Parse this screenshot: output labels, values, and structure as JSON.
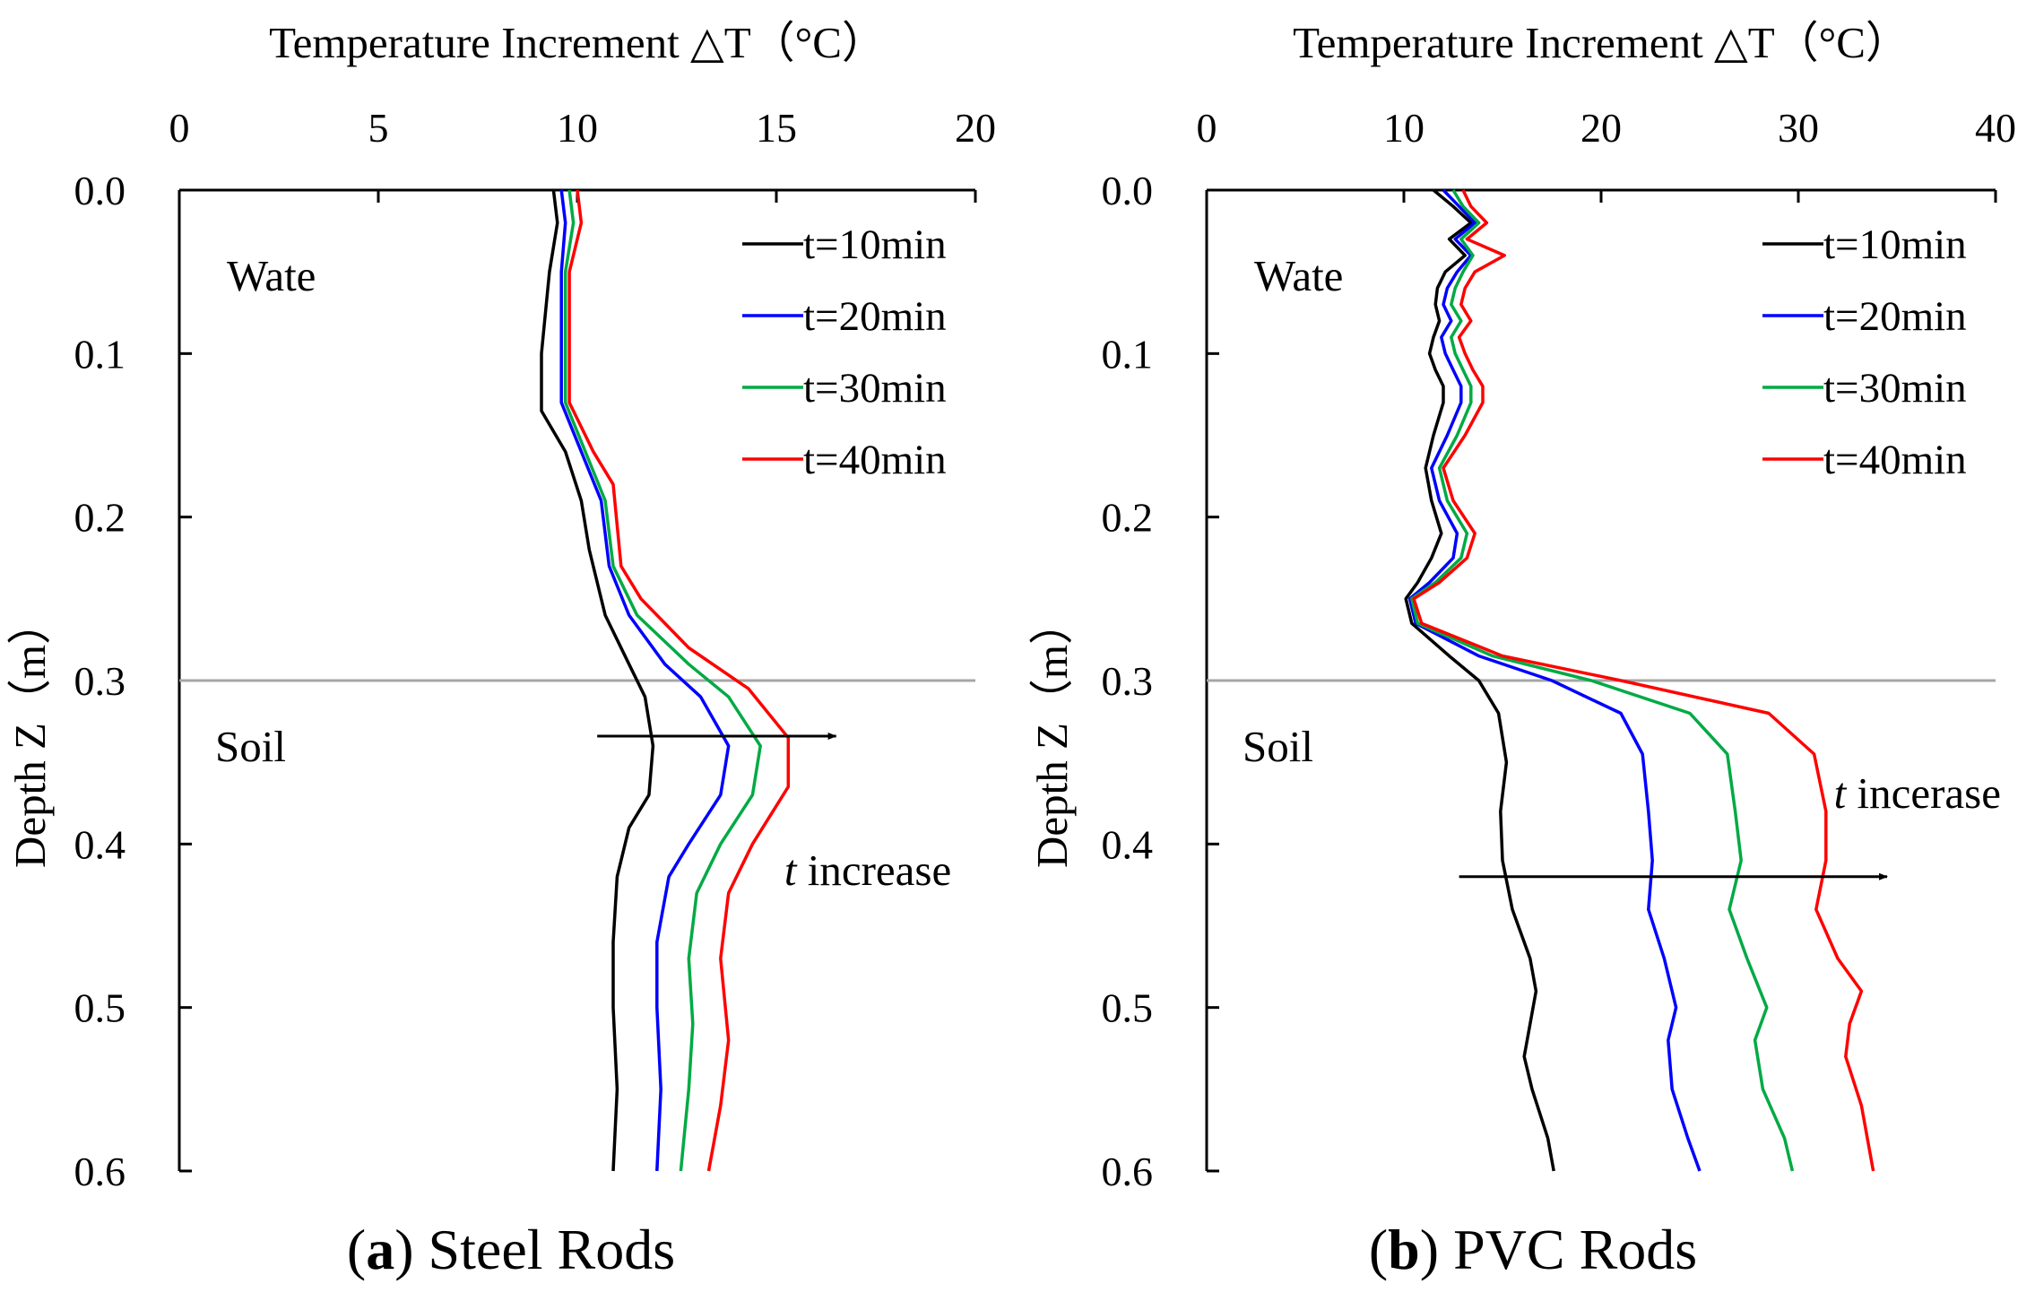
{
  "chart_data": [
    {
      "type": "line",
      "panel_letter": "a",
      "caption_text": "Steel Rods",
      "xlabel": "Temperature Increment △T（°C）",
      "ylabel": "Depth Z（m）",
      "xlim": [
        0,
        20
      ],
      "ylim": [
        0,
        0.6
      ],
      "y_inverted": true,
      "x_axis_position": "top",
      "xticks": [
        "0",
        "5",
        "10",
        "15",
        "20"
      ],
      "yticks": [
        "0.0",
        "0.1",
        "0.2",
        "0.3",
        "0.4",
        "0.5",
        "0.6"
      ],
      "interface_depth": 0.3,
      "region_labels": {
        "upper": "Wate",
        "lower": "Soil"
      },
      "annotation": {
        "italic": "t",
        "text": " increase",
        "arrow": {
          "from": [
            10.5,
            0.334
          ],
          "to": [
            16.5,
            0.334
          ]
        }
      },
      "legend_placement": "top-right",
      "series": [
        {
          "name": "t=10min",
          "color": "#000000",
          "points": [
            [
              9.4,
              0
            ],
            [
              9.5,
              0.02
            ],
            [
              9.3,
              0.05
            ],
            [
              9.1,
              0.1
            ],
            [
              9.1,
              0.135
            ],
            [
              9.7,
              0.16
            ],
            [
              10.1,
              0.19
            ],
            [
              10.3,
              0.22
            ],
            [
              10.7,
              0.26
            ],
            [
              11.3,
              0.29
            ],
            [
              11.7,
              0.31
            ],
            [
              11.9,
              0.34
            ],
            [
              11.8,
              0.37
            ],
            [
              11.3,
              0.39
            ],
            [
              11.0,
              0.42
            ],
            [
              10.9,
              0.46
            ],
            [
              10.9,
              0.5
            ],
            [
              11.0,
              0.55
            ],
            [
              10.9,
              0.6
            ]
          ]
        },
        {
          "name": "t=20min",
          "color": "#0000ff",
          "points": [
            [
              9.6,
              0
            ],
            [
              9.7,
              0.02
            ],
            [
              9.6,
              0.05
            ],
            [
              9.6,
              0.1
            ],
            [
              9.6,
              0.13
            ],
            [
              10.1,
              0.16
            ],
            [
              10.6,
              0.19
            ],
            [
              10.8,
              0.23
            ],
            [
              11.3,
              0.26
            ],
            [
              12.2,
              0.29
            ],
            [
              13.1,
              0.31
            ],
            [
              13.8,
              0.34
            ],
            [
              13.6,
              0.37
            ],
            [
              12.8,
              0.4
            ],
            [
              12.3,
              0.42
            ],
            [
              12.0,
              0.46
            ],
            [
              12.0,
              0.5
            ],
            [
              12.1,
              0.55
            ],
            [
              12.0,
              0.6
            ]
          ]
        },
        {
          "name": "t=30min",
          "color": "#00aa44",
          "points": [
            [
              9.8,
              0
            ],
            [
              9.9,
              0.02
            ],
            [
              9.7,
              0.05
            ],
            [
              9.7,
              0.1
            ],
            [
              9.7,
              0.13
            ],
            [
              10.2,
              0.16
            ],
            [
              10.7,
              0.19
            ],
            [
              10.9,
              0.23
            ],
            [
              11.5,
              0.26
            ],
            [
              12.8,
              0.29
            ],
            [
              13.8,
              0.31
            ],
            [
              14.6,
              0.34
            ],
            [
              14.4,
              0.37
            ],
            [
              13.6,
              0.4
            ],
            [
              13.0,
              0.43
            ],
            [
              12.8,
              0.47
            ],
            [
              12.9,
              0.51
            ],
            [
              12.8,
              0.55
            ],
            [
              12.6,
              0.6
            ]
          ]
        },
        {
          "name": "t=40min",
          "color": "#ff0000",
          "points": [
            [
              10.0,
              0
            ],
            [
              10.1,
              0.02
            ],
            [
              9.8,
              0.05
            ],
            [
              9.8,
              0.1
            ],
            [
              9.8,
              0.13
            ],
            [
              10.4,
              0.16
            ],
            [
              10.9,
              0.18
            ],
            [
              11.1,
              0.23
            ],
            [
              11.6,
              0.25
            ],
            [
              12.8,
              0.28
            ],
            [
              14.3,
              0.305
            ],
            [
              15.3,
              0.335
            ],
            [
              15.3,
              0.365
            ],
            [
              14.4,
              0.4
            ],
            [
              13.8,
              0.43
            ],
            [
              13.6,
              0.47
            ],
            [
              13.8,
              0.52
            ],
            [
              13.6,
              0.56
            ],
            [
              13.3,
              0.6
            ]
          ]
        }
      ]
    },
    {
      "type": "line",
      "panel_letter": "b",
      "caption_text": "PVC Rods",
      "xlabel": "Temperature Increment △T（°C）",
      "ylabel": "Depth Z（m）",
      "xlim": [
        0,
        40
      ],
      "ylim": [
        0,
        0.6
      ],
      "y_inverted": true,
      "x_axis_position": "top",
      "xticks": [
        "0",
        "10",
        "20",
        "30",
        "40"
      ],
      "yticks": [
        "0.0",
        "0.1",
        "0.2",
        "0.3",
        "0.4",
        "0.5",
        "0.6"
      ],
      "interface_depth": 0.3,
      "region_labels": {
        "upper": "Wate",
        "lower": "Soil"
      },
      "annotation": {
        "italic": "t",
        "text": " incerase",
        "arrow": {
          "from": [
            12.8,
            0.42
          ],
          "to": [
            34.5,
            0.42
          ]
        }
      },
      "legend_placement": "top-right",
      "series": [
        {
          "name": "t=10min",
          "color": "#000000",
          "points": [
            [
              11.5,
              0
            ],
            [
              12.5,
              0.01
            ],
            [
              13.4,
              0.02
            ],
            [
              12.3,
              0.03
            ],
            [
              13.1,
              0.04
            ],
            [
              12.1,
              0.05
            ],
            [
              11.7,
              0.06
            ],
            [
              11.6,
              0.07
            ],
            [
              11.8,
              0.08
            ],
            [
              11.5,
              0.09
            ],
            [
              11.3,
              0.1
            ],
            [
              11.6,
              0.11
            ],
            [
              12.0,
              0.12
            ],
            [
              12.0,
              0.13
            ],
            [
              11.5,
              0.15
            ],
            [
              11.1,
              0.17
            ],
            [
              11.4,
              0.19
            ],
            [
              11.9,
              0.21
            ],
            [
              11.4,
              0.225
            ],
            [
              10.7,
              0.24
            ],
            [
              10.1,
              0.25
            ],
            [
              10.4,
              0.265
            ],
            [
              12.3,
              0.285
            ],
            [
              13.8,
              0.3
            ],
            [
              14.8,
              0.32
            ],
            [
              15.2,
              0.35
            ],
            [
              14.9,
              0.38
            ],
            [
              15.0,
              0.41
            ],
            [
              15.5,
              0.44
            ],
            [
              16.4,
              0.47
            ],
            [
              16.7,
              0.49
            ],
            [
              16.4,
              0.51
            ],
            [
              16.1,
              0.53
            ],
            [
              16.5,
              0.55
            ],
            [
              17.3,
              0.58
            ],
            [
              17.6,
              0.6
            ]
          ]
        },
        {
          "name": "t=20min",
          "color": "#0000ff",
          "points": [
            [
              12.0,
              0
            ],
            [
              12.8,
              0.01
            ],
            [
              13.6,
              0.02
            ],
            [
              12.6,
              0.03
            ],
            [
              13.4,
              0.04
            ],
            [
              12.7,
              0.05
            ],
            [
              12.2,
              0.06
            ],
            [
              12.0,
              0.07
            ],
            [
              12.4,
              0.08
            ],
            [
              11.9,
              0.09
            ],
            [
              12.1,
              0.1
            ],
            [
              12.5,
              0.11
            ],
            [
              12.9,
              0.12
            ],
            [
              12.9,
              0.13
            ],
            [
              12.2,
              0.15
            ],
            [
              11.4,
              0.17
            ],
            [
              11.8,
              0.19
            ],
            [
              12.7,
              0.21
            ],
            [
              12.5,
              0.225
            ],
            [
              11.3,
              0.24
            ],
            [
              10.3,
              0.25
            ],
            [
              10.6,
              0.265
            ],
            [
              13.8,
              0.285
            ],
            [
              17.5,
              0.3
            ],
            [
              21.0,
              0.32
            ],
            [
              22.1,
              0.345
            ],
            [
              22.4,
              0.38
            ],
            [
              22.6,
              0.41
            ],
            [
              22.4,
              0.44
            ],
            [
              23.2,
              0.47
            ],
            [
              23.8,
              0.5
            ],
            [
              23.4,
              0.52
            ],
            [
              23.6,
              0.55
            ],
            [
              24.4,
              0.58
            ],
            [
              25.0,
              0.6
            ]
          ]
        },
        {
          "name": "t=30min",
          "color": "#00aa44",
          "points": [
            [
              12.5,
              0
            ],
            [
              13.0,
              0.01
            ],
            [
              13.8,
              0.02
            ],
            [
              12.9,
              0.03
            ],
            [
              13.5,
              0.04
            ],
            [
              13.0,
              0.05
            ],
            [
              12.6,
              0.06
            ],
            [
              12.4,
              0.07
            ],
            [
              12.9,
              0.08
            ],
            [
              12.4,
              0.09
            ],
            [
              12.6,
              0.1
            ],
            [
              13.0,
              0.11
            ],
            [
              13.4,
              0.12
            ],
            [
              13.4,
              0.13
            ],
            [
              12.7,
              0.15
            ],
            [
              11.8,
              0.17
            ],
            [
              12.2,
              0.19
            ],
            [
              13.2,
              0.21
            ],
            [
              12.9,
              0.225
            ],
            [
              11.6,
              0.24
            ],
            [
              10.4,
              0.25
            ],
            [
              10.7,
              0.265
            ],
            [
              14.5,
              0.285
            ],
            [
              19.5,
              0.3
            ],
            [
              24.5,
              0.32
            ],
            [
              26.4,
              0.345
            ],
            [
              26.8,
              0.38
            ],
            [
              27.1,
              0.41
            ],
            [
              26.5,
              0.44
            ],
            [
              27.4,
              0.47
            ],
            [
              28.4,
              0.5
            ],
            [
              27.8,
              0.52
            ],
            [
              28.2,
              0.55
            ],
            [
              29.3,
              0.58
            ],
            [
              29.7,
              0.6
            ]
          ]
        },
        {
          "name": "t=40min",
          "color": "#ff0000",
          "points": [
            [
              13.0,
              0
            ],
            [
              13.4,
              0.01
            ],
            [
              14.2,
              0.02
            ],
            [
              13.2,
              0.03
            ],
            [
              15.1,
              0.04
            ],
            [
              13.6,
              0.05
            ],
            [
              13.1,
              0.06
            ],
            [
              12.9,
              0.07
            ],
            [
              13.4,
              0.08
            ],
            [
              12.8,
              0.09
            ],
            [
              13.1,
              0.1
            ],
            [
              13.5,
              0.11
            ],
            [
              14.0,
              0.12
            ],
            [
              14.0,
              0.13
            ],
            [
              13.1,
              0.15
            ],
            [
              12.0,
              0.17
            ],
            [
              12.5,
              0.19
            ],
            [
              13.6,
              0.21
            ],
            [
              13.2,
              0.225
            ],
            [
              11.8,
              0.24
            ],
            [
              10.5,
              0.25
            ],
            [
              10.9,
              0.265
            ],
            [
              15.0,
              0.285
            ],
            [
              21.0,
              0.3
            ],
            [
              28.5,
              0.32
            ],
            [
              30.8,
              0.345
            ],
            [
              31.4,
              0.38
            ],
            [
              31.4,
              0.41
            ],
            [
              30.9,
              0.44
            ],
            [
              32.0,
              0.47
            ],
            [
              33.2,
              0.49
            ],
            [
              32.6,
              0.51
            ],
            [
              32.4,
              0.53
            ],
            [
              33.2,
              0.56
            ],
            [
              33.8,
              0.6
            ]
          ]
        }
      ]
    }
  ]
}
